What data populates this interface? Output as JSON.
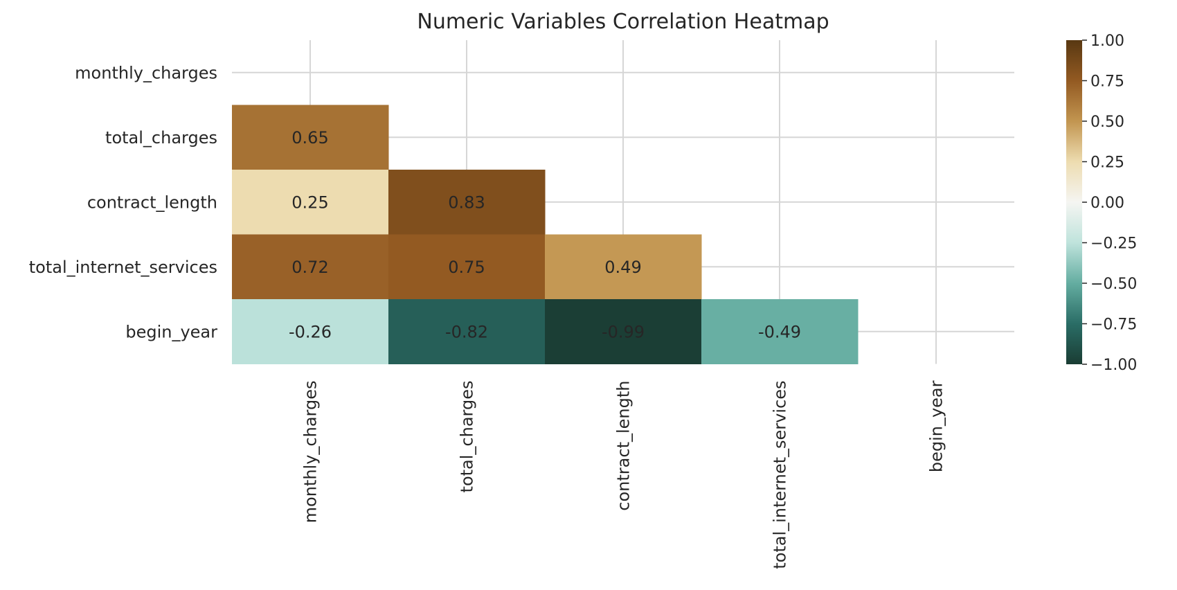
{
  "chart_data": {
    "type": "heatmap",
    "title": "Numeric Variables Correlation Heatmap",
    "xlabel": "",
    "ylabel": "",
    "mask": "upper-triangle-including-diagonal",
    "grid": true,
    "variables": [
      "monthly_charges",
      "total_charges",
      "contract_length",
      "total_internet_services",
      "begin_year"
    ],
    "cells": [
      {
        "row": "total_charges",
        "col": "monthly_charges",
        "value": 0.65,
        "label": "0.65"
      },
      {
        "row": "contract_length",
        "col": "monthly_charges",
        "value": 0.25,
        "label": "0.25"
      },
      {
        "row": "contract_length",
        "col": "total_charges",
        "value": 0.83,
        "label": "0.83"
      },
      {
        "row": "total_internet_services",
        "col": "monthly_charges",
        "value": 0.72,
        "label": "0.72"
      },
      {
        "row": "total_internet_services",
        "col": "total_charges",
        "value": 0.75,
        "label": "0.75"
      },
      {
        "row": "total_internet_services",
        "col": "contract_length",
        "value": 0.49,
        "label": "0.49"
      },
      {
        "row": "begin_year",
        "col": "monthly_charges",
        "value": -0.26,
        "label": "-0.26"
      },
      {
        "row": "begin_year",
        "col": "total_charges",
        "value": -0.82,
        "label": "-0.82"
      },
      {
        "row": "begin_year",
        "col": "contract_length",
        "value": -0.99,
        "label": "-0.99"
      },
      {
        "row": "begin_year",
        "col": "total_internet_services",
        "value": -0.49,
        "label": "-0.49"
      }
    ],
    "colorbar": {
      "range": [
        -1,
        1
      ],
      "colormap": "BrBG-reversed",
      "ticks": [
        1.0,
        0.75,
        0.5,
        0.25,
        0.0,
        -0.25,
        -0.5,
        -0.75,
        -1.0
      ],
      "tick_labels": [
        "1.00",
        "0.75",
        "0.50",
        "0.25",
        "0.00",
        "−0.25",
        "−0.50",
        "−0.75",
        "−1.00"
      ]
    },
    "colors": {
      "stops": [
        "#1a3c33",
        "#2a6d66",
        "#64ada1",
        "#bfe3dc",
        "#f5f5f2",
        "#eddcb0",
        "#c29550",
        "#935a22",
        "#583812"
      ],
      "grid": "#d6d6d6"
    }
  }
}
